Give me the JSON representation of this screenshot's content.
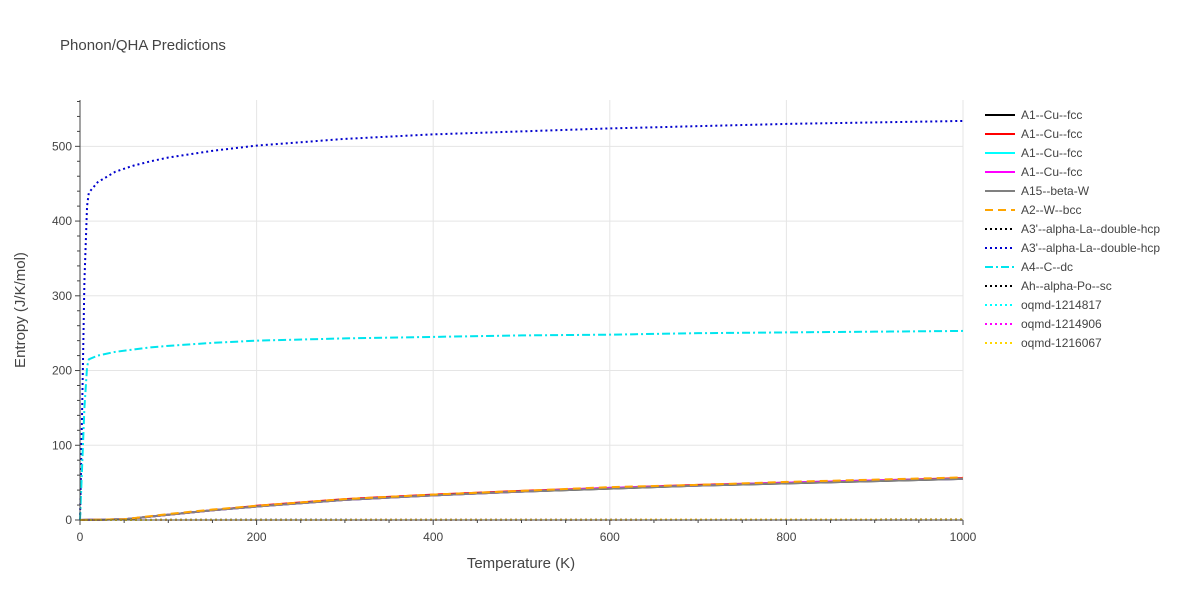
{
  "chart_data": {
    "type": "line",
    "title": "Phonon/QHA Predictions",
    "xlabel": "Temperature (K)",
    "ylabel": "Entropy (J/K/mol)",
    "xlim": [
      0,
      1000
    ],
    "ylim": [
      0,
      562
    ],
    "xticks": [
      0,
      200,
      400,
      600,
      800,
      1000
    ],
    "xtick_labels": [
      "0",
      "200",
      "400",
      "600",
      "800",
      "1000"
    ],
    "yticks": [
      0,
      100,
      200,
      300,
      400,
      500
    ],
    "ytick_labels": [
      "0",
      "100",
      "200",
      "300",
      "400",
      "500"
    ],
    "grid": true,
    "legend_position": "right",
    "series": [
      {
        "name": "A1--Cu--fcc",
        "color": "#000000",
        "dash": "solid",
        "x": [
          0,
          50,
          100,
          150,
          200,
          300,
          400,
          500,
          600,
          700,
          800,
          900,
          1000
        ],
        "y": [
          0,
          1,
          7,
          13,
          18,
          27,
          33,
          38,
          42,
          46,
          49,
          52,
          55
        ]
      },
      {
        "name": "A1--Cu--fcc",
        "color": "#ff0000",
        "dash": "solid",
        "x": [
          0,
          50,
          100,
          150,
          200,
          300,
          400,
          500,
          600,
          700,
          800,
          900,
          1000
        ],
        "y": [
          0,
          1,
          7,
          13,
          19,
          28,
          34,
          39,
          43,
          47,
          50,
          53,
          56
        ]
      },
      {
        "name": "A1--Cu--fcc",
        "color": "#00ffff",
        "dash": "solid",
        "x": [
          0,
          50,
          100,
          150,
          200,
          300,
          400,
          500,
          600,
          700,
          800,
          900,
          1000
        ],
        "y": [
          0,
          1,
          7,
          13,
          18,
          27,
          33,
          38,
          43,
          46,
          50,
          53,
          55
        ]
      },
      {
        "name": "A1--Cu--fcc",
        "color": "#ff00ff",
        "dash": "solid",
        "x": [
          0,
          50,
          100,
          150,
          200,
          300,
          400,
          500,
          600,
          700,
          800,
          900,
          1000
        ],
        "y": [
          0,
          1,
          7,
          13,
          18,
          27,
          33,
          38,
          43,
          46,
          50,
          53,
          55
        ]
      },
      {
        "name": "A15--beta-W",
        "color": "#808080",
        "dash": "solid",
        "x": [
          0,
          50,
          100,
          150,
          200,
          300,
          400,
          500,
          600,
          700,
          800,
          900,
          1000
        ],
        "y": [
          0,
          1,
          7,
          13,
          18,
          27,
          33,
          38,
          42,
          46,
          49,
          52,
          55
        ]
      },
      {
        "name": "A2--W--bcc",
        "color": "#ffa500",
        "dash": "dash",
        "x": [
          0,
          50,
          100,
          150,
          200,
          300,
          400,
          500,
          600,
          700,
          800,
          900,
          1000
        ],
        "y": [
          0,
          1,
          8,
          14,
          19,
          28,
          34,
          39,
          44,
          47,
          51,
          54,
          57
        ]
      },
      {
        "name": "A3'--alpha-La--double-hcp",
        "color": "#000000",
        "dash": "dot",
        "x": [
          0,
          200,
          400,
          600,
          800,
          1000
        ],
        "y": [
          0,
          0.3,
          0.5,
          0.6,
          0.7,
          0.8
        ]
      },
      {
        "name": "A3'--alpha-La--double-hcp",
        "color": "#0000cd",
        "dash": "dot",
        "x": [
          0,
          2,
          5,
          8,
          10,
          20,
          40,
          60,
          80,
          100,
          150,
          200,
          300,
          400,
          500,
          600,
          700,
          800,
          900,
          1000
        ],
        "y": [
          0,
          120,
          320,
          420,
          438,
          452,
          466,
          474,
          480,
          485,
          494,
          501,
          510,
          516,
          520,
          524,
          527,
          530,
          532,
          534
        ]
      },
      {
        "name": "A4--C--dc",
        "color": "#00e5ee",
        "dash": "dashdot",
        "x": [
          0,
          2,
          5,
          8,
          10,
          20,
          40,
          60,
          80,
          100,
          150,
          200,
          300,
          400,
          500,
          600,
          700,
          800,
          900,
          1000
        ],
        "y": [
          0,
          60,
          150,
          205,
          215,
          220,
          225,
          228,
          231,
          233,
          237,
          240,
          243,
          245,
          247,
          248,
          250,
          251,
          252,
          253
        ]
      },
      {
        "name": "Ah--alpha-Po--sc",
        "color": "#000000",
        "dash": "dot",
        "x": [
          0,
          200,
          400,
          600,
          800,
          1000
        ],
        "y": [
          0,
          0.2,
          0.3,
          0.4,
          0.5,
          0.5
        ]
      },
      {
        "name": "oqmd-1214817",
        "color": "#00ffff",
        "dash": "dot",
        "x": [
          0,
          200,
          400,
          600,
          800,
          1000
        ],
        "y": [
          0,
          0.2,
          0.3,
          0.4,
          0.5,
          0.5
        ]
      },
      {
        "name": "oqmd-1214906",
        "color": "#ff00ff",
        "dash": "dot",
        "x": [
          0,
          200,
          400,
          600,
          800,
          1000
        ],
        "y": [
          0,
          0.2,
          0.3,
          0.4,
          0.5,
          0.5
        ]
      },
      {
        "name": "oqmd-1216067",
        "color": "#ffd700",
        "dash": "dot",
        "x": [
          0,
          200,
          400,
          600,
          800,
          1000
        ],
        "y": [
          0,
          0.2,
          0.3,
          0.4,
          0.5,
          0.5
        ]
      }
    ]
  }
}
